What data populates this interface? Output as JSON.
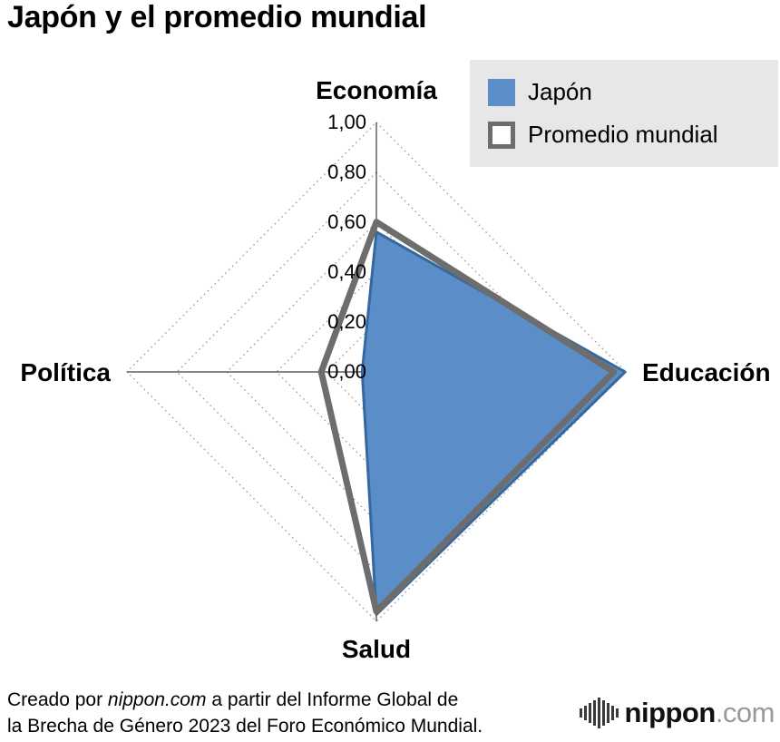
{
  "title": "Japón y el promedio mundial",
  "legend": {
    "position": "top-right",
    "items": [
      {
        "label": "Japón",
        "swatch": "filled-blue-square"
      },
      {
        "label": "Promedio mundial",
        "swatch": "white-square-gray-outline"
      }
    ]
  },
  "chart_data": {
    "type": "radar",
    "title": "Japón y el promedio mundial",
    "categories": [
      "Economía",
      "Educación",
      "Salud",
      "Política"
    ],
    "axis_order": [
      "top",
      "right",
      "bottom",
      "left"
    ],
    "range": [
      0,
      1
    ],
    "tick_labels": [
      "0,00",
      "0,20",
      "0,40",
      "0,60",
      "0,80",
      "1,00"
    ],
    "grid": "dotted concentric diamonds at 0.2 intervals",
    "legend_position": "top-right",
    "series": [
      {
        "name": "Japón",
        "values": [
          0.561,
          0.997,
          0.973,
          0.057
        ],
        "fill": "#5b8ec9",
        "stroke": "#34689e",
        "stroke_width": 3
      },
      {
        "name": "Promedio mundial",
        "values": [
          0.601,
          0.952,
          0.96,
          0.221
        ],
        "fill": "none",
        "stroke": "#6d6d6d",
        "stroke_width": 7
      }
    ]
  },
  "footer": {
    "prefix": "Creado por ",
    "source": "nippon.com",
    "suffix": " a partir del Informe Global de\nla Brecha de Género 2023 del Foro Económico Mundial."
  },
  "logo": {
    "icon": "soundwave-icon",
    "name": "nippon",
    "tld": ".com"
  }
}
